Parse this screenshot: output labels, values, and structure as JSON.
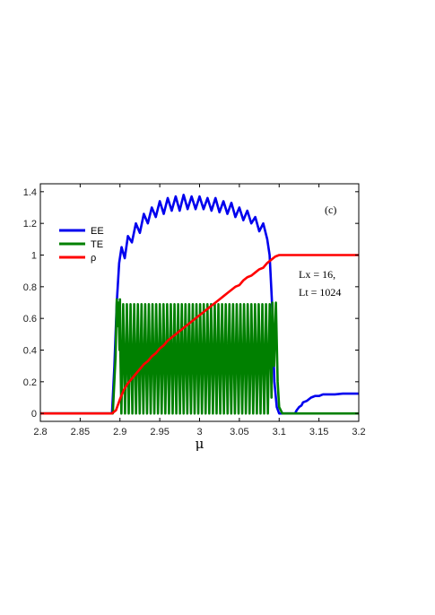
{
  "chart_data": {
    "type": "line",
    "xlabel": "μ",
    "ylabel": "",
    "xlim": [
      2.8,
      3.2
    ],
    "ylim": [
      -0.05,
      1.45
    ],
    "xticks": [
      "2.8",
      "2.85",
      "2.9",
      "2.95",
      "3",
      "3.05",
      "3.1",
      "3.15",
      "3.2"
    ],
    "yticks": [
      "0",
      "0.2",
      "0.4",
      "0.6",
      "0.8",
      "1",
      "1.2",
      "1.4"
    ],
    "grid": false,
    "legend_position": "top-left",
    "panel_label": "(c)",
    "annotation": [
      "Lx = 16,",
      "Lt = 1024"
    ],
    "series": [
      {
        "name": "EE",
        "color": "#0000ee",
        "x": [
          2.8,
          2.89,
          2.893,
          2.896,
          2.899,
          2.902,
          2.906,
          2.91,
          2.915,
          2.92,
          2.925,
          2.93,
          2.935,
          2.94,
          2.945,
          2.95,
          2.955,
          2.96,
          2.965,
          2.97,
          2.975,
          2.98,
          2.985,
          2.99,
          2.995,
          3.0,
          3.005,
          3.01,
          3.015,
          3.02,
          3.025,
          3.03,
          3.035,
          3.04,
          3.045,
          3.05,
          3.055,
          3.06,
          3.065,
          3.07,
          3.075,
          3.08,
          3.085,
          3.088,
          3.091,
          3.094,
          3.097,
          3.1,
          3.103,
          3.106,
          3.11,
          3.12,
          3.122,
          3.125,
          3.128,
          3.13,
          3.135,
          3.14,
          3.145,
          3.15,
          3.155,
          3.16,
          3.17,
          3.18,
          3.2
        ],
        "y": [
          0.0,
          0.0,
          0.3,
          0.7,
          0.95,
          1.05,
          0.98,
          1.12,
          1.08,
          1.2,
          1.14,
          1.26,
          1.2,
          1.3,
          1.24,
          1.34,
          1.26,
          1.36,
          1.28,
          1.37,
          1.28,
          1.38,
          1.29,
          1.37,
          1.29,
          1.37,
          1.29,
          1.36,
          1.28,
          1.36,
          1.27,
          1.34,
          1.26,
          1.33,
          1.24,
          1.3,
          1.22,
          1.28,
          1.2,
          1.24,
          1.15,
          1.2,
          1.1,
          1.0,
          0.7,
          0.2,
          0.04,
          0.0,
          0.0,
          0.0,
          0.0,
          0.0,
          0.02,
          0.04,
          0.05,
          0.07,
          0.08,
          0.1,
          0.11,
          0.11,
          0.12,
          0.12,
          0.12,
          0.125,
          0.125
        ]
      },
      {
        "name": "TE",
        "color": "#008000",
        "x": [
          2.8,
          2.891,
          2.8945,
          2.896,
          2.8975,
          2.898,
          2.8995,
          2.9,
          2.9005,
          2.9018,
          2.9041,
          2.9064,
          2.9087,
          2.911,
          2.9133,
          2.9156,
          2.9179,
          2.9202,
          2.9225,
          2.9248,
          2.9271,
          2.9294,
          2.9317,
          2.934,
          2.9363,
          2.9386,
          2.9409,
          2.9432,
          2.9455,
          2.9478,
          2.9501,
          2.9524,
          2.9547,
          2.957,
          2.9593,
          2.9616,
          2.9639,
          2.9662,
          2.9685,
          2.9708,
          2.9731,
          2.9754,
          2.9777,
          2.98,
          2.9823,
          2.9846,
          2.9869,
          2.9892,
          2.9915,
          2.9938,
          2.9961,
          2.9984,
          3.0007,
          3.003,
          3.0053,
          3.0076,
          3.0099,
          3.0122,
          3.0145,
          3.0168,
          3.0191,
          3.0214,
          3.0237,
          3.026,
          3.0283,
          3.0306,
          3.0329,
          3.0352,
          3.0375,
          3.0398,
          3.0421,
          3.0444,
          3.0467,
          3.049,
          3.0513,
          3.0536,
          3.0559,
          3.0582,
          3.0605,
          3.0628,
          3.0651,
          3.0674,
          3.0697,
          3.072,
          3.0743,
          3.0766,
          3.0789,
          3.0812,
          3.0835,
          3.0858,
          3.0881,
          3.0904,
          3.0915,
          3.0937,
          3.0959,
          3.0981,
          3.1,
          3.104,
          3.11,
          3.2
        ],
        "y": [
          0.0,
          0.0,
          0.36,
          0.72,
          0.55,
          0.7,
          0.4,
          0.72,
          0.4,
          0.0,
          0.69,
          0.0,
          0.69,
          0.0,
          0.69,
          0.0,
          0.69,
          0.0,
          0.69,
          0.0,
          0.69,
          0.0,
          0.69,
          0.0,
          0.69,
          0.0,
          0.69,
          0.0,
          0.69,
          0.0,
          0.69,
          0.0,
          0.69,
          0.0,
          0.69,
          0.0,
          0.69,
          0.0,
          0.69,
          0.0,
          0.69,
          0.0,
          0.69,
          0.0,
          0.69,
          0.0,
          0.69,
          0.0,
          0.69,
          0.0,
          0.69,
          0.0,
          0.69,
          0.0,
          0.69,
          0.0,
          0.69,
          0.0,
          0.69,
          0.0,
          0.69,
          0.0,
          0.69,
          0.0,
          0.69,
          0.0,
          0.69,
          0.0,
          0.69,
          0.0,
          0.69,
          0.0,
          0.69,
          0.0,
          0.69,
          0.0,
          0.69,
          0.0,
          0.69,
          0.0,
          0.69,
          0.0,
          0.69,
          0.0,
          0.69,
          0.0,
          0.69,
          0.0,
          0.69,
          0.0,
          0.69,
          0.1,
          0.7,
          0.3,
          0.7,
          0.2,
          0.04,
          0.0,
          0.0,
          0.0
        ]
      },
      {
        "name": "ρ",
        "color": "#ff0000",
        "x": [
          2.8,
          2.89,
          2.895,
          2.9,
          2.905,
          2.91,
          2.915,
          2.92,
          2.925,
          2.93,
          2.935,
          2.94,
          2.945,
          2.95,
          2.955,
          2.96,
          2.965,
          2.97,
          2.975,
          2.98,
          2.985,
          2.99,
          2.995,
          3.0,
          3.005,
          3.01,
          3.015,
          3.02,
          3.025,
          3.03,
          3.035,
          3.04,
          3.045,
          3.05,
          3.055,
          3.06,
          3.065,
          3.07,
          3.075,
          3.08,
          3.085,
          3.09,
          3.095,
          3.1,
          3.2
        ],
        "y": [
          0.0,
          0.0,
          0.02,
          0.09,
          0.15,
          0.19,
          0.22,
          0.25,
          0.28,
          0.31,
          0.33,
          0.36,
          0.38,
          0.41,
          0.43,
          0.46,
          0.48,
          0.5,
          0.52,
          0.54,
          0.56,
          0.58,
          0.6,
          0.62,
          0.64,
          0.66,
          0.68,
          0.7,
          0.72,
          0.74,
          0.76,
          0.78,
          0.8,
          0.81,
          0.84,
          0.86,
          0.87,
          0.89,
          0.91,
          0.92,
          0.95,
          0.97,
          0.99,
          1.0,
          1.0
        ]
      }
    ]
  }
}
